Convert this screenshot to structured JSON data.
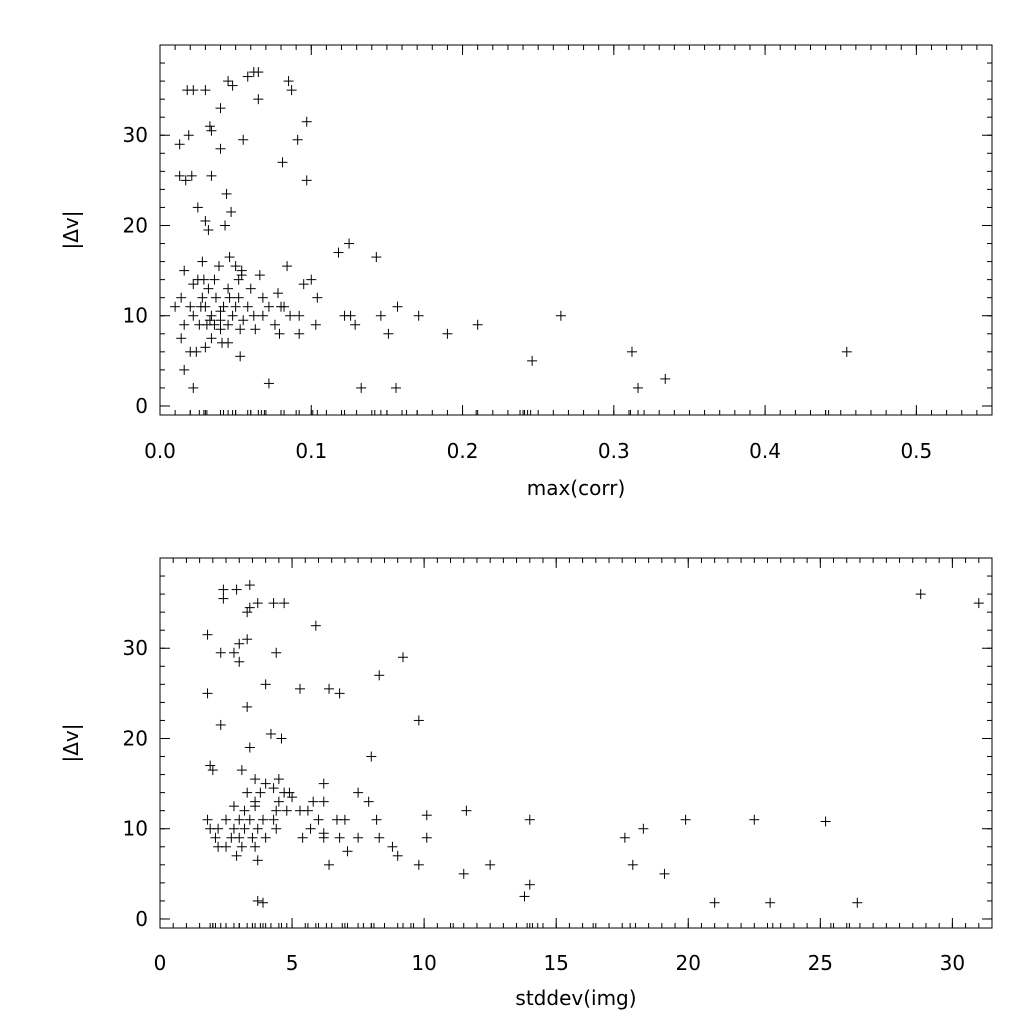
{
  "chart_data": [
    {
      "type": "scatter",
      "title": "",
      "xlabel": "max(corr)",
      "ylabel": "|Δv|",
      "xlim": [
        0.0,
        0.55
      ],
      "ylim": [
        -1,
        40
      ],
      "xticks": [
        "0.0",
        "0.1",
        "0.2",
        "0.3",
        "0.4",
        "0.5"
      ],
      "xtick_values": [
        0.0,
        0.1,
        0.2,
        0.3,
        0.4,
        0.5
      ],
      "yticks": [
        "0",
        "10",
        "20",
        "30"
      ],
      "ytick_values": [
        0,
        10,
        20,
        30
      ],
      "grid": false,
      "points": [
        [
          0.018,
          35.0
        ],
        [
          0.022,
          35.0
        ],
        [
          0.03,
          35.0
        ],
        [
          0.045,
          36.0
        ],
        [
          0.058,
          36.5
        ],
        [
          0.062,
          37.0
        ],
        [
          0.065,
          37.0
        ],
        [
          0.048,
          35.5
        ],
        [
          0.085,
          36.0
        ],
        [
          0.087,
          35.0
        ],
        [
          0.065,
          34.0
        ],
        [
          0.04,
          33.0
        ],
        [
          0.097,
          31.5
        ],
        [
          0.033,
          31.0
        ],
        [
          0.034,
          30.5
        ],
        [
          0.013,
          29.0
        ],
        [
          0.019,
          30.0
        ],
        [
          0.055,
          29.5
        ],
        [
          0.091,
          29.5
        ],
        [
          0.04,
          28.5
        ],
        [
          0.081,
          27.0
        ],
        [
          0.013,
          25.5
        ],
        [
          0.017,
          25.0
        ],
        [
          0.021,
          25.5
        ],
        [
          0.034,
          25.5
        ],
        [
          0.097,
          25.0
        ],
        [
          0.044,
          23.5
        ],
        [
          0.025,
          22.0
        ],
        [
          0.047,
          21.5
        ],
        [
          0.03,
          20.5
        ],
        [
          0.043,
          20.0
        ],
        [
          0.032,
          19.5
        ],
        [
          0.118,
          17.0
        ],
        [
          0.125,
          18.0
        ],
        [
          0.143,
          16.5
        ],
        [
          0.046,
          16.5
        ],
        [
          0.028,
          16.0
        ],
        [
          0.05,
          15.5
        ],
        [
          0.039,
          15.5
        ],
        [
          0.054,
          15.0
        ],
        [
          0.084,
          15.5
        ],
        [
          0.016,
          15.0
        ],
        [
          0.054,
          14.5
        ],
        [
          0.025,
          14.0
        ],
        [
          0.029,
          14.0
        ],
        [
          0.036,
          14.0
        ],
        [
          0.052,
          14.0
        ],
        [
          0.066,
          14.5
        ],
        [
          0.1,
          14.0
        ],
        [
          0.095,
          13.5
        ],
        [
          0.022,
          13.5
        ],
        [
          0.032,
          13.0
        ],
        [
          0.045,
          13.0
        ],
        [
          0.06,
          13.0
        ],
        [
          0.078,
          12.5
        ],
        [
          0.104,
          12.0
        ],
        [
          0.014,
          12.0
        ],
        [
          0.028,
          12.0
        ],
        [
          0.037,
          12.0
        ],
        [
          0.046,
          12.0
        ],
        [
          0.052,
          12.0
        ],
        [
          0.068,
          12.0
        ],
        [
          0.02,
          11.0
        ],
        [
          0.027,
          11.0
        ],
        [
          0.03,
          11.0
        ],
        [
          0.042,
          11.0
        ],
        [
          0.05,
          11.0
        ],
        [
          0.058,
          11.0
        ],
        [
          0.072,
          11.0
        ],
        [
          0.08,
          11.0
        ],
        [
          0.082,
          11.0
        ],
        [
          0.157,
          11.0
        ],
        [
          0.01,
          11.0
        ],
        [
          0.04,
          10.5
        ],
        [
          0.086,
          10.0
        ],
        [
          0.092,
          10.0
        ],
        [
          0.122,
          10.0
        ],
        [
          0.126,
          10.0
        ],
        [
          0.146,
          10.0
        ],
        [
          0.171,
          10.0
        ],
        [
          0.265,
          10.0
        ],
        [
          0.022,
          10.0
        ],
        [
          0.034,
          10.0
        ],
        [
          0.048,
          10.0
        ],
        [
          0.062,
          10.0
        ],
        [
          0.068,
          10.0
        ],
        [
          0.033,
          9.5
        ],
        [
          0.04,
          9.5
        ],
        [
          0.055,
          9.5
        ],
        [
          0.016,
          9.0
        ],
        [
          0.026,
          9.0
        ],
        [
          0.031,
          9.0
        ],
        [
          0.036,
          9.0
        ],
        [
          0.045,
          9.0
        ],
        [
          0.076,
          9.0
        ],
        [
          0.103,
          9.0
        ],
        [
          0.129,
          9.0
        ],
        [
          0.21,
          9.0
        ],
        [
          0.04,
          8.5
        ],
        [
          0.053,
          8.5
        ],
        [
          0.063,
          8.5
        ],
        [
          0.079,
          8.0
        ],
        [
          0.092,
          8.0
        ],
        [
          0.151,
          8.0
        ],
        [
          0.19,
          8.0
        ],
        [
          0.014,
          7.5
        ],
        [
          0.034,
          7.5
        ],
        [
          0.041,
          7.0
        ],
        [
          0.045,
          7.0
        ],
        [
          0.03,
          6.5
        ],
        [
          0.02,
          6.0
        ],
        [
          0.024,
          6.0
        ],
        [
          0.312,
          6.0
        ],
        [
          0.454,
          6.0
        ],
        [
          0.053,
          5.5
        ],
        [
          0.246,
          5.0
        ],
        [
          0.016,
          4.0
        ],
        [
          0.334,
          3.0
        ],
        [
          0.022,
          2.0
        ],
        [
          0.072,
          2.5
        ],
        [
          0.133,
          2.0
        ],
        [
          0.156,
          2.0
        ],
        [
          0.316,
          2.0
        ]
      ],
      "rug": [
        0.02,
        0.026,
        0.029,
        0.031,
        0.04,
        0.042,
        0.045,
        0.048,
        0.05,
        0.058,
        0.06,
        0.065,
        0.067,
        0.069,
        0.08,
        0.082,
        0.092,
        0.101,
        0.104,
        0.122,
        0.142,
        0.146,
        0.15,
        0.163,
        0.17,
        0.209,
        0.238,
        0.241,
        0.243,
        0.245,
        0.311,
        0.316,
        0.44,
        0.442
      ]
    },
    {
      "type": "scatter",
      "title": "",
      "xlabel": "stddev(img)",
      "ylabel": "|Δv|",
      "xlim": [
        0,
        31.5
      ],
      "ylim": [
        -1,
        40
      ],
      "xticks": [
        "0",
        "5",
        "10",
        "15",
        "20",
        "25",
        "30"
      ],
      "xtick_values": [
        0,
        5,
        10,
        15,
        20,
        25,
        30
      ],
      "yticks": [
        "0",
        "10",
        "20",
        "30"
      ],
      "ytick_values": [
        0,
        10,
        20,
        30
      ],
      "grid": false,
      "points": [
        [
          2.4,
          36.5
        ],
        [
          2.4,
          35.5
        ],
        [
          2.9,
          36.5
        ],
        [
          3.4,
          37.0
        ],
        [
          3.7,
          35.0
        ],
        [
          4.3,
          35.0
        ],
        [
          4.7,
          35.0
        ],
        [
          3.4,
          34.5
        ],
        [
          3.3,
          34.0
        ],
        [
          5.9,
          32.5
        ],
        [
          1.8,
          31.5
        ],
        [
          3.3,
          31.0
        ],
        [
          3.0,
          30.5
        ],
        [
          2.3,
          29.5
        ],
        [
          2.8,
          29.5
        ],
        [
          3.0,
          28.5
        ],
        [
          4.4,
          29.5
        ],
        [
          9.2,
          29.0
        ],
        [
          8.3,
          27.0
        ],
        [
          28.8,
          36.0
        ],
        [
          31.0,
          35.0
        ],
        [
          1.8,
          25.0
        ],
        [
          4.0,
          26.0
        ],
        [
          5.3,
          25.5
        ],
        [
          6.4,
          25.5
        ],
        [
          6.8,
          25.0
        ],
        [
          3.3,
          23.5
        ],
        [
          9.8,
          22.0
        ],
        [
          2.3,
          21.5
        ],
        [
          4.2,
          20.5
        ],
        [
          4.6,
          20.0
        ],
        [
          3.4,
          19.0
        ],
        [
          8.0,
          18.0
        ],
        [
          1.9,
          17.0
        ],
        [
          2.0,
          16.5
        ],
        [
          3.1,
          16.5
        ],
        [
          3.6,
          15.5
        ],
        [
          4.0,
          15.0
        ],
        [
          4.5,
          15.5
        ],
        [
          6.2,
          15.0
        ],
        [
          7.5,
          14.0
        ],
        [
          11.6,
          12.0
        ],
        [
          3.3,
          14.0
        ],
        [
          3.8,
          14.0
        ],
        [
          4.3,
          14.5
        ],
        [
          4.7,
          14.0
        ],
        [
          4.9,
          14.0
        ],
        [
          3.6,
          13.0
        ],
        [
          4.5,
          13.0
        ],
        [
          5.0,
          13.5
        ],
        [
          5.8,
          13.0
        ],
        [
          6.2,
          13.0
        ],
        [
          7.9,
          13.0
        ],
        [
          2.8,
          12.5
        ],
        [
          3.2,
          12.0
        ],
        [
          3.6,
          12.5
        ],
        [
          4.4,
          12.0
        ],
        [
          4.8,
          12.0
        ],
        [
          5.3,
          12.0
        ],
        [
          5.6,
          12.0
        ],
        [
          6.0,
          11.0
        ],
        [
          6.7,
          11.0
        ],
        [
          7.0,
          11.0
        ],
        [
          8.2,
          11.0
        ],
        [
          10.1,
          11.5
        ],
        [
          14.0,
          11.0
        ],
        [
          19.9,
          11.0
        ],
        [
          22.5,
          11.0
        ],
        [
          25.2,
          10.8
        ],
        [
          1.8,
          11.0
        ],
        [
          2.5,
          11.0
        ],
        [
          3.0,
          11.0
        ],
        [
          3.4,
          11.0
        ],
        [
          3.9,
          11.0
        ],
        [
          4.3,
          11.0
        ],
        [
          1.9,
          10.0
        ],
        [
          2.2,
          10.0
        ],
        [
          2.8,
          10.0
        ],
        [
          3.2,
          10.0
        ],
        [
          3.7,
          10.0
        ],
        [
          4.4,
          10.0
        ],
        [
          5.7,
          10.0
        ],
        [
          6.2,
          9.5
        ],
        [
          18.3,
          10.0
        ],
        [
          2.1,
          9.0
        ],
        [
          2.7,
          9.0
        ],
        [
          3.0,
          9.0
        ],
        [
          3.5,
          9.0
        ],
        [
          4.0,
          9.0
        ],
        [
          5.4,
          9.0
        ],
        [
          6.2,
          9.0
        ],
        [
          6.8,
          9.0
        ],
        [
          7.5,
          9.0
        ],
        [
          8.3,
          9.0
        ],
        [
          10.1,
          9.0
        ],
        [
          17.6,
          9.0
        ],
        [
          2.2,
          8.0
        ],
        [
          2.5,
          8.0
        ],
        [
          3.1,
          8.0
        ],
        [
          3.6,
          8.0
        ],
        [
          2.9,
          7.0
        ],
        [
          8.8,
          8.0
        ],
        [
          9.0,
          7.0
        ],
        [
          7.1,
          7.5
        ],
        [
          3.7,
          6.5
        ],
        [
          6.4,
          6.0
        ],
        [
          9.8,
          6.0
        ],
        [
          12.5,
          6.0
        ],
        [
          17.9,
          6.0
        ],
        [
          19.1,
          5.0
        ],
        [
          11.5,
          5.0
        ],
        [
          14.0,
          3.8
        ],
        [
          13.8,
          2.5
        ],
        [
          3.7,
          2.0
        ],
        [
          3.9,
          1.8
        ],
        [
          21.0,
          1.8
        ],
        [
          23.1,
          1.8
        ],
        [
          26.4,
          1.8
        ]
      ],
      "rug": [
        1.9,
        2.0,
        2.1,
        2.3,
        2.5,
        2.8,
        3.0,
        3.3,
        3.5,
        3.6,
        3.8,
        3.9,
        4.2,
        4.6,
        4.8,
        5.6,
        5.9,
        6.3,
        6.9,
        7.1,
        7.7,
        8.0,
        8.1,
        9.2,
        9.6,
        11.1,
        13.9,
        14.1,
        14.3,
        16.4,
        17.8,
        23.2,
        25.4,
        26.1
      ]
    }
  ],
  "panels": [
    {
      "xlabel": "max(corr)",
      "ylabel": "|Δv|"
    },
    {
      "xlabel": "stddev(img)",
      "ylabel": "|Δv|"
    }
  ]
}
